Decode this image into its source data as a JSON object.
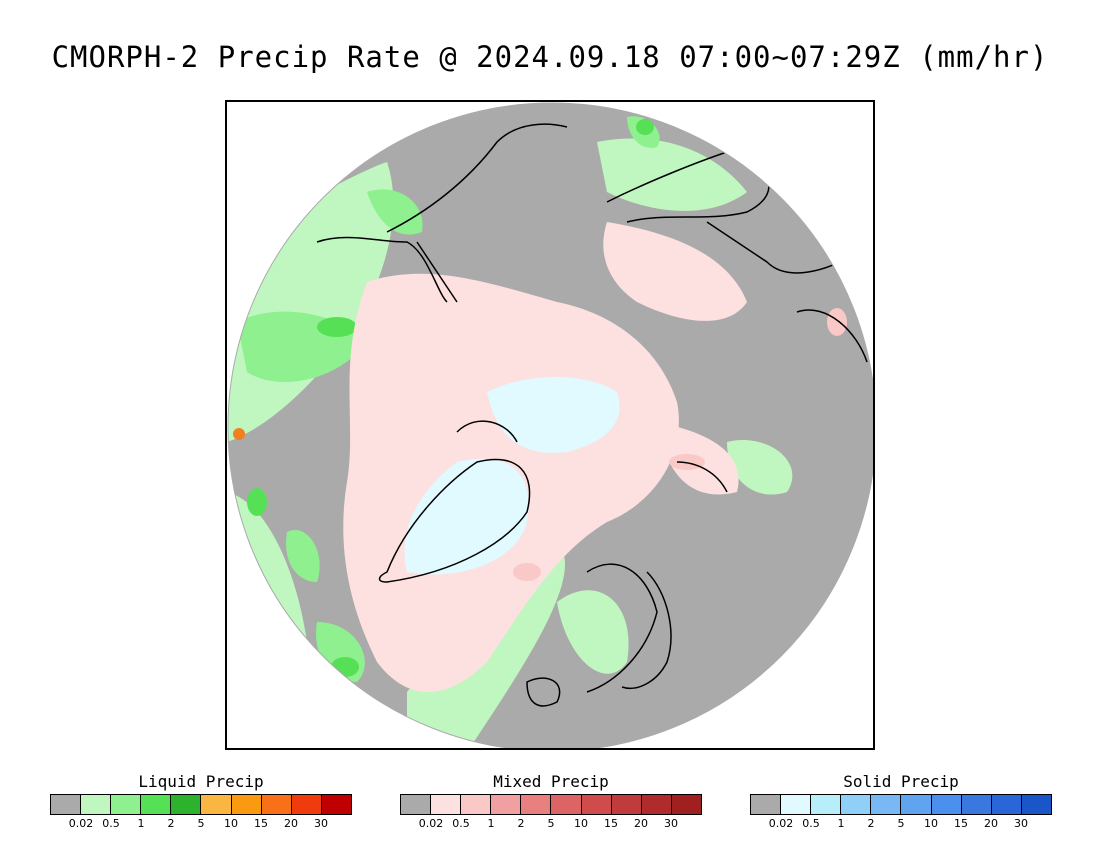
{
  "title": "CMORPH-2 Precip Rate @ 2024.09.18 07:00~07:29Z (mm/hr)",
  "map": {
    "projection": "north-polar-stereographic",
    "background_color": "#aaaaaa",
    "fields": {
      "liquid_colors": [
        "#c0f7c0",
        "#8ef08e",
        "#55e055",
        "#2db22d"
      ],
      "mixed_colors": [
        "#fde0e0",
        "#fbc8c8",
        "#f0a0a0"
      ],
      "solid_colors": [
        "#e0faff",
        "#b8eefa",
        "#90d0f8"
      ],
      "hot_spot": "#f08020"
    }
  },
  "legends": [
    {
      "title": "Liquid Precip",
      "colors": [
        "#aaaaaa",
        "#c0f7c0",
        "#8ef08e",
        "#55e055",
        "#2db22d",
        "#f9b640",
        "#f99a10",
        "#f87018",
        "#f03c0c",
        "#c00000"
      ],
      "ticks": [
        "0.02",
        "0.5",
        "1",
        "2",
        "5",
        "10",
        "15",
        "20",
        "30"
      ]
    },
    {
      "title": "Mixed Precip",
      "colors": [
        "#aaaaaa",
        "#fde0e0",
        "#fbc8c8",
        "#f0a0a0",
        "#e88080",
        "#dc6464",
        "#d04c4c",
        "#c03c3c",
        "#b02c2c",
        "#a02020"
      ],
      "ticks": [
        "0.02",
        "0.5",
        "1",
        "2",
        "5",
        "10",
        "15",
        "20",
        "30"
      ]
    },
    {
      "title": "Solid Precip",
      "colors": [
        "#aaaaaa",
        "#e0faff",
        "#b8eefa",
        "#90d0f8",
        "#78b8f4",
        "#60a4f0",
        "#4a90ec",
        "#3a78e0",
        "#2a66d8",
        "#1a56c8"
      ],
      "ticks": [
        "0.02",
        "0.5",
        "1",
        "2",
        "5",
        "10",
        "15",
        "20",
        "30"
      ]
    }
  ]
}
